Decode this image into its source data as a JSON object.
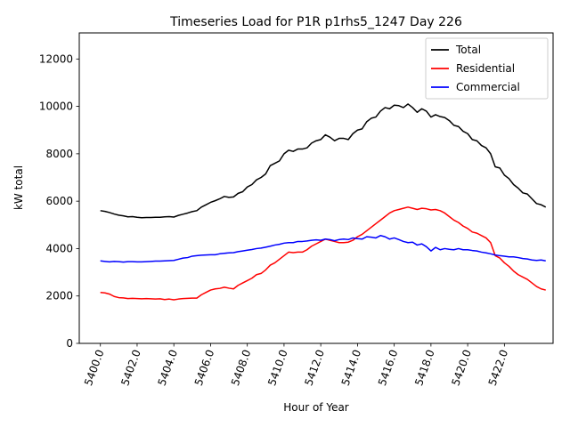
{
  "chart_data": {
    "type": "line",
    "title": "Timeseries Load for P1R p1rhs5_1247  Day 226",
    "xlabel": "Hour of Year",
    "ylabel": "kW total",
    "xlim": [
      5398.85,
      5424.65
    ],
    "ylim": [
      0,
      13100
    ],
    "xticks": [
      5400,
      5402,
      5404,
      5406,
      5408,
      5410,
      5412,
      5414,
      5416,
      5418,
      5420,
      5422
    ],
    "xtick_labels": [
      "5400.0",
      "5402.0",
      "5404.0",
      "5406.0",
      "5408.0",
      "5410.0",
      "5412.0",
      "5414.0",
      "5416.0",
      "5418.0",
      "5420.0",
      "5422.0"
    ],
    "yticks": [
      0,
      2000,
      4000,
      6000,
      8000,
      10000,
      12000
    ],
    "ytick_labels": [
      "0",
      "2000",
      "4000",
      "6000",
      "8000",
      "10000",
      "12000"
    ],
    "legend_position": "top-right",
    "series": [
      {
        "name": "Total",
        "color": "#000000",
        "x_start": 5400,
        "x_step": 0.25,
        "values": [
          5600,
          5570,
          5520,
          5460,
          5410,
          5380,
          5340,
          5350,
          5320,
          5300,
          5310,
          5310,
          5320,
          5320,
          5340,
          5350,
          5330,
          5400,
          5450,
          5500,
          5560,
          5600,
          5750,
          5850,
          5950,
          6020,
          6100,
          6200,
          6160,
          6180,
          6330,
          6400,
          6600,
          6700,
          6900,
          7000,
          7150,
          7500,
          7600,
          7700,
          8000,
          8150,
          8100,
          8200,
          8200,
          8250,
          8450,
          8550,
          8600,
          8800,
          8700,
          8550,
          8650,
          8650,
          8600,
          8850,
          9000,
          9050,
          9350,
          9500,
          9550,
          9800,
          9950,
          9900,
          10050,
          10030,
          9950,
          10100,
          9950,
          9750,
          9900,
          9800,
          9550,
          9650,
          9570,
          9530,
          9400,
          9200,
          9150,
          8950,
          8850,
          8600,
          8550,
          8350,
          8250,
          8000,
          7450,
          7400,
          7100,
          6950,
          6700,
          6550,
          6350,
          6300,
          6100,
          5900,
          5850,
          5750
        ]
      },
      {
        "name": "Residential",
        "color": "#ff0000",
        "x_start": 5400,
        "x_step": 0.25,
        "values": [
          2150,
          2130,
          2080,
          1980,
          1930,
          1920,
          1890,
          1900,
          1890,
          1880,
          1890,
          1880,
          1870,
          1880,
          1850,
          1870,
          1840,
          1870,
          1890,
          1900,
          1910,
          1910,
          2050,
          2150,
          2250,
          2300,
          2320,
          2370,
          2330,
          2300,
          2450,
          2550,
          2650,
          2750,
          2900,
          2950,
          3100,
          3300,
          3400,
          3550,
          3700,
          3850,
          3830,
          3850,
          3850,
          3950,
          4100,
          4200,
          4300,
          4400,
          4350,
          4300,
          4250,
          4250,
          4270,
          4350,
          4500,
          4600,
          4750,
          4900,
          5050,
          5200,
          5350,
          5500,
          5600,
          5650,
          5700,
          5750,
          5700,
          5650,
          5700,
          5680,
          5630,
          5650,
          5600,
          5500,
          5350,
          5200,
          5100,
          4950,
          4850,
          4700,
          4650,
          4550,
          4450,
          4250,
          3700,
          3600,
          3400,
          3250,
          3050,
          2900,
          2800,
          2700,
          2550,
          2400,
          2300,
          2250
        ]
      },
      {
        "name": "Commercial",
        "color": "#0000ff",
        "x_start": 5400,
        "x_step": 0.25,
        "values": [
          3480,
          3460,
          3440,
          3460,
          3450,
          3430,
          3450,
          3450,
          3440,
          3440,
          3450,
          3460,
          3470,
          3470,
          3480,
          3490,
          3500,
          3550,
          3600,
          3620,
          3680,
          3700,
          3720,
          3730,
          3740,
          3740,
          3780,
          3800,
          3820,
          3830,
          3870,
          3900,
          3930,
          3960,
          4000,
          4020,
          4060,
          4100,
          4150,
          4180,
          4230,
          4250,
          4250,
          4300,
          4300,
          4320,
          4350,
          4370,
          4350,
          4400,
          4380,
          4330,
          4380,
          4400,
          4380,
          4450,
          4420,
          4400,
          4500,
          4480,
          4450,
          4550,
          4500,
          4400,
          4450,
          4380,
          4300,
          4250,
          4270,
          4150,
          4200,
          4080,
          3900,
          4050,
          3950,
          4000,
          3970,
          3950,
          4000,
          3950,
          3950,
          3920,
          3900,
          3850,
          3820,
          3780,
          3730,
          3700,
          3680,
          3650,
          3650,
          3620,
          3580,
          3560,
          3520,
          3500,
          3520,
          3480
        ]
      }
    ]
  }
}
